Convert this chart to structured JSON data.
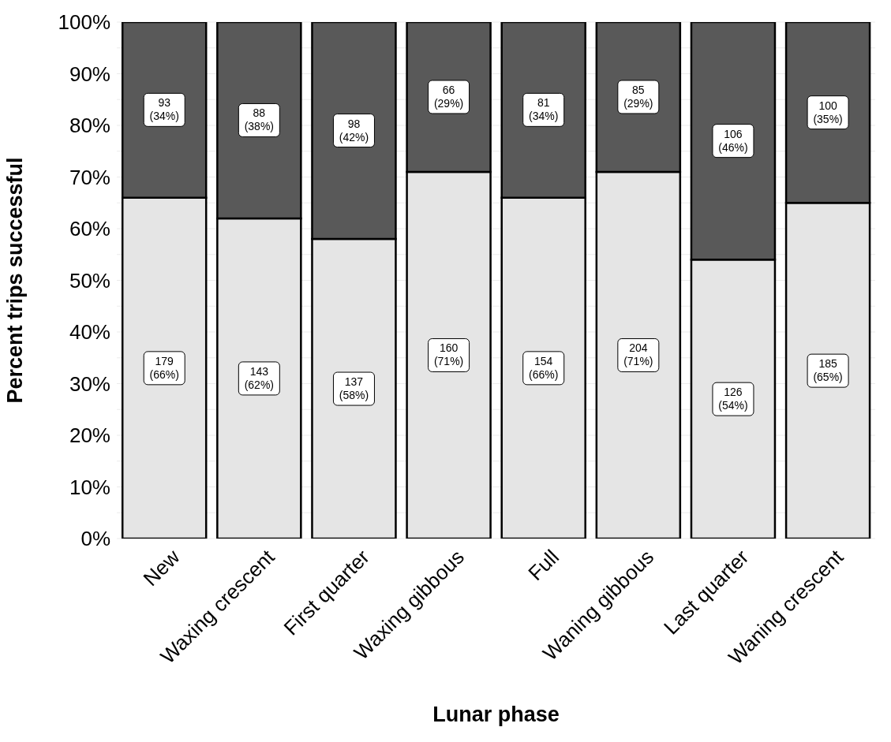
{
  "chart_data": {
    "type": "bar",
    "stacked": true,
    "xlabel": "Lunar phase",
    "ylabel": "Percent trips successful",
    "categories": [
      "New",
      "Waxing crescent",
      "First quarter",
      "Waxing gibbous",
      "Full",
      "Waning gibbous",
      "Last quarter",
      "Waning crescent"
    ],
    "series": [
      {
        "color": "#e5e5e5",
        "values": [
          66,
          62,
          58,
          71,
          66,
          71,
          54,
          65
        ],
        "value_labels": [
          "179 (66%)",
          "143 (62%)",
          "137 (58%)",
          "160 (71%)",
          "154 (66%)",
          "204 (71%)",
          "126 (54%)",
          "185 (65%)"
        ]
      },
      {
        "color": "#595959",
        "values": [
          34,
          38,
          42,
          29,
          34,
          29,
          46,
          35
        ],
        "value_labels": [
          "93 (34%)",
          "88 (38%)",
          "98 (42%)",
          "66 (29%)",
          "81 (34%)",
          "85 (29%)",
          "106 (46%)",
          "100 (35%)"
        ]
      }
    ],
    "ylim": [
      0,
      100
    ],
    "yticks": [
      {
        "value": 0,
        "label": "0%"
      },
      {
        "value": 5,
        "label": null
      },
      {
        "value": 10,
        "label": "10%"
      },
      {
        "value": 15,
        "label": null
      },
      {
        "value": 20,
        "label": "20%"
      },
      {
        "value": 25,
        "label": null
      },
      {
        "value": 30,
        "label": "30%"
      },
      {
        "value": 35,
        "label": null
      },
      {
        "value": 40,
        "label": "40%"
      },
      {
        "value": 45,
        "label": null
      },
      {
        "value": 50,
        "label": "50%"
      },
      {
        "value": 55,
        "label": null
      },
      {
        "value": 60,
        "label": "60%"
      },
      {
        "value": 65,
        "label": null
      },
      {
        "value": 70,
        "label": "70%"
      },
      {
        "value": 75,
        "label": null
      },
      {
        "value": 80,
        "label": "80%"
      },
      {
        "value": 85,
        "label": null
      },
      {
        "value": 90,
        "label": "90%"
      },
      {
        "value": 95,
        "label": null
      },
      {
        "value": 100,
        "label": "100%"
      }
    ],
    "grid": "y"
  }
}
